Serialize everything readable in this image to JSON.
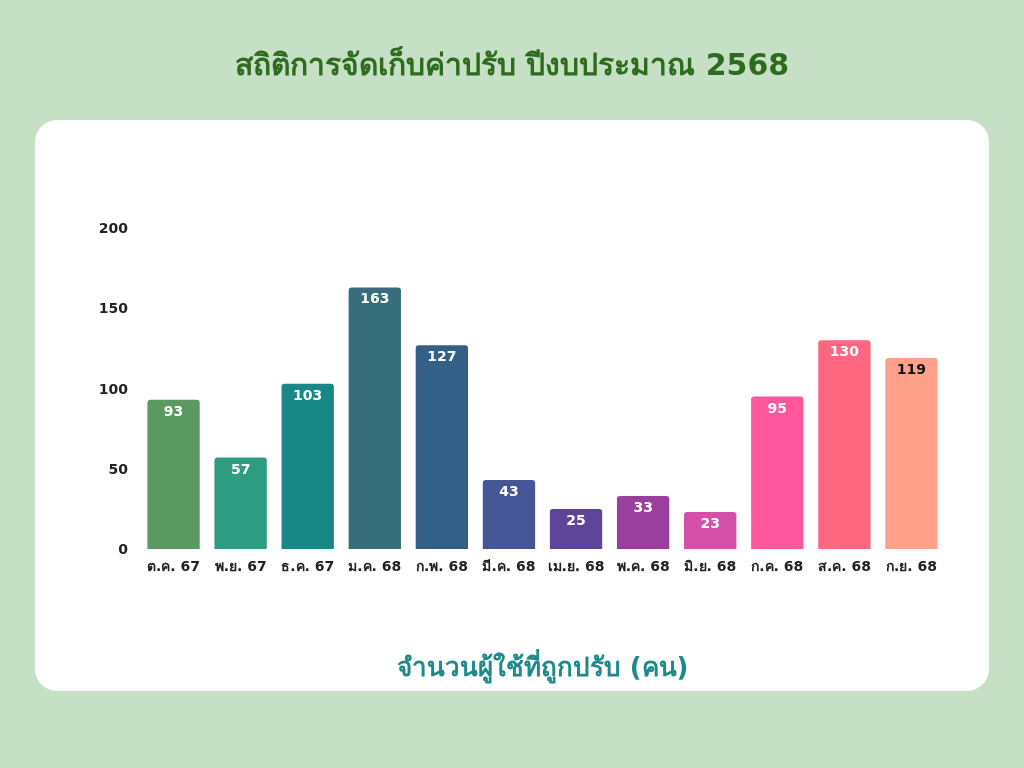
{
  "chart_data": {
    "type": "bar",
    "title": "สถิติการจัดเก็บค่าปรับ ปีงบประมาณ 2568",
    "xlabel": "จำนวนผู้ใช้ที่ถูกปรับ (คน)",
    "categories": [
      "ต.ค. 67",
      "พ.ย. 67",
      "ธ.ค. 67",
      "ม.ค. 68",
      "ก.พ. 68",
      "มี.ค. 68",
      "เม.ย. 68",
      "พ.ค. 68",
      "มิ.ย. 68",
      "ก.ค. 68",
      "ส.ค. 68",
      "ก.ย. 68"
    ],
    "values": [
      93,
      57,
      103,
      163,
      127,
      43,
      25,
      33,
      23,
      95,
      130,
      119
    ],
    "colors": [
      "#5a9a62",
      "#2e9c80",
      "#1a8787",
      "#366e7c",
      "#345f86",
      "#465596",
      "#5f4599",
      "#9a3f9e",
      "#d34fa8",
      "#ff579e",
      "#ff6680",
      "#ffa08a"
    ],
    "ylim": [
      0,
      200
    ],
    "yticks": [
      0,
      50,
      100,
      150,
      200
    ],
    "grid": false,
    "data_labels": true
  }
}
